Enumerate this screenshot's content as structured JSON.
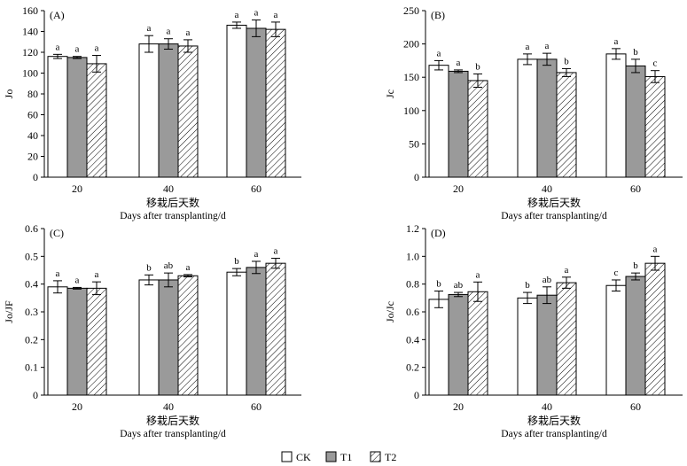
{
  "legend": [
    {
      "label": "CK",
      "style": "white"
    },
    {
      "label": "T1",
      "style": "gray"
    },
    {
      "label": "T2",
      "style": "hatched"
    }
  ],
  "colors": {
    "ck": "#ffffff",
    "t1": "#9a9a9a",
    "t2_hatch": "#000000"
  },
  "chart_data": [
    {
      "type": "bar",
      "panel_label": "(A)",
      "categories": [
        "20",
        "40",
        "60"
      ],
      "ylabel": "Jo",
      "xlabel_cn": "移栽后天数",
      "xlabel_en": "Days after transplanting/d",
      "ylim": [
        0,
        160
      ],
      "yticks": [
        "0",
        "20",
        "40",
        "60",
        "80",
        "100",
        "120",
        "140",
        "160"
      ],
      "series": [
        {
          "name": "CK",
          "values": [
            116,
            128,
            146
          ],
          "errors": [
            2,
            8,
            3
          ],
          "letters": [
            "a",
            "a",
            "a"
          ]
        },
        {
          "name": "T1",
          "values": [
            115,
            128,
            143
          ],
          "errors": [
            1,
            5,
            8
          ],
          "letters": [
            "a",
            "a",
            "a"
          ]
        },
        {
          "name": "T2",
          "values": [
            109,
            126,
            142
          ],
          "errors": [
            8,
            6,
            7
          ],
          "letters": [
            "a",
            "a",
            "a"
          ]
        }
      ]
    },
    {
      "type": "bar",
      "panel_label": "(B)",
      "categories": [
        "20",
        "40",
        "60"
      ],
      "ylabel": "Jc",
      "xlabel_cn": "移栽后天数",
      "xlabel_en": "Days after transplanting/d",
      "ylim": [
        0,
        250
      ],
      "yticks": [
        "0",
        "50",
        "100",
        "150",
        "200",
        "250"
      ],
      "series": [
        {
          "name": "CK",
          "values": [
            168,
            177,
            185
          ],
          "errors": [
            7,
            8,
            8
          ],
          "letters": [
            "a",
            "a",
            "a"
          ]
        },
        {
          "name": "T1",
          "values": [
            159,
            177,
            167
          ],
          "errors": [
            2,
            9,
            10
          ],
          "letters": [
            "a",
            "a",
            "b"
          ]
        },
        {
          "name": "T2",
          "values": [
            145,
            157,
            151
          ],
          "errors": [
            10,
            6,
            9
          ],
          "letters": [
            "b",
            "b",
            "c"
          ]
        }
      ]
    },
    {
      "type": "bar",
      "panel_label": "(C)",
      "categories": [
        "20",
        "40",
        "60"
      ],
      "ylabel": "Jo/JF",
      "xlabel_cn": "移栽后天数",
      "xlabel_en": "Days after transplanting/d",
      "ylim": [
        0,
        0.6
      ],
      "yticks": [
        "0",
        "0.1",
        "0.2",
        "0.3",
        "0.4",
        "0.5",
        "0.6"
      ],
      "series": [
        {
          "name": "CK",
          "values": [
            0.39,
            0.415,
            0.443
          ],
          "errors": [
            0.022,
            0.018,
            0.013
          ],
          "letters": [
            "a",
            "b",
            "b"
          ]
        },
        {
          "name": "T1",
          "values": [
            0.385,
            0.415,
            0.46
          ],
          "errors": [
            0.003,
            0.025,
            0.022
          ],
          "letters": [
            "a",
            "ab",
            "a"
          ]
        },
        {
          "name": "T2",
          "values": [
            0.385,
            0.43,
            0.475
          ],
          "errors": [
            0.023,
            0.004,
            0.018
          ],
          "letters": [
            "a",
            "a",
            "a"
          ]
        }
      ]
    },
    {
      "type": "bar",
      "panel_label": "(D)",
      "categories": [
        "20",
        "40",
        "60"
      ],
      "ylabel": "Jo/Jc",
      "xlabel_cn": "移栽后天数",
      "xlabel_en": "Days after transplanting/d",
      "ylim": [
        0,
        1.2
      ],
      "yticks": [
        "0",
        "0.2",
        "0.4",
        "0.6",
        "0.8",
        "1.0",
        "1.2"
      ],
      "series": [
        {
          "name": "CK",
          "values": [
            0.69,
            0.7,
            0.79
          ],
          "errors": [
            0.06,
            0.04,
            0.04
          ],
          "letters": [
            "b",
            "b",
            "c"
          ]
        },
        {
          "name": "T1",
          "values": [
            0.725,
            0.72,
            0.855
          ],
          "errors": [
            0.015,
            0.06,
            0.025
          ],
          "letters": [
            "ab",
            "ab",
            "b"
          ]
        },
        {
          "name": "T2",
          "values": [
            0.745,
            0.81,
            0.95
          ],
          "errors": [
            0.07,
            0.04,
            0.05
          ],
          "letters": [
            "a",
            "a",
            "a"
          ]
        }
      ]
    }
  ]
}
